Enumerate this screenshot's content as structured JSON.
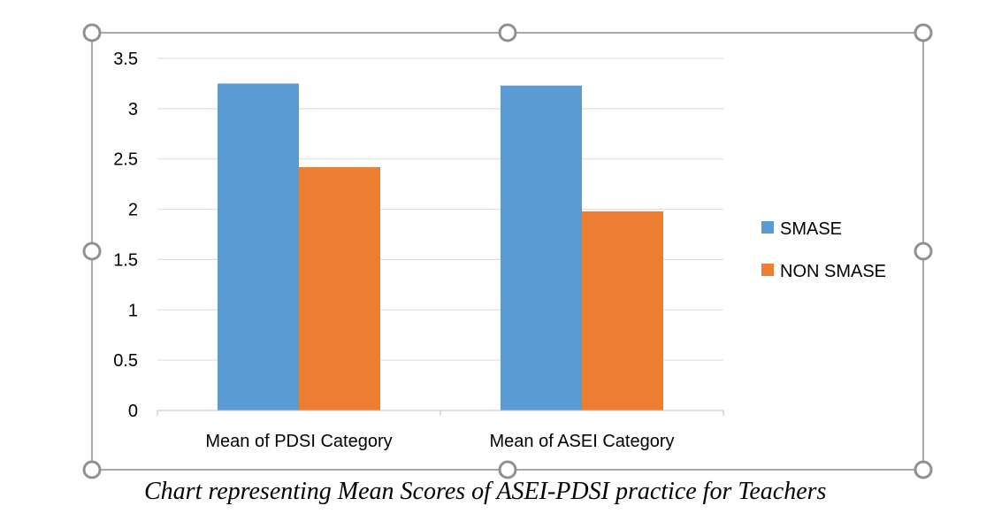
{
  "chart_data": {
    "type": "bar",
    "categories": [
      "Mean of PDSI Category",
      "Mean of ASEI Category"
    ],
    "series": [
      {
        "name": "SMASE",
        "values": [
          3.25,
          3.23
        ],
        "color": "#5B9BD5"
      },
      {
        "name": "NON SMASE",
        "values": [
          2.42,
          1.98
        ],
        "color": "#ED7D31"
      }
    ],
    "ylim": [
      0,
      3.5
    ],
    "yticks": [
      "0",
      "0.5",
      "1",
      "1.5",
      "2",
      "2.5",
      "3",
      "3.5"
    ],
    "grid": true,
    "legend_position": "right"
  },
  "caption": "Chart representing Mean Scores of ASEI-PDSI practice for Teachers",
  "frame_color": "#8c8c8c",
  "handle_color": "#909090"
}
